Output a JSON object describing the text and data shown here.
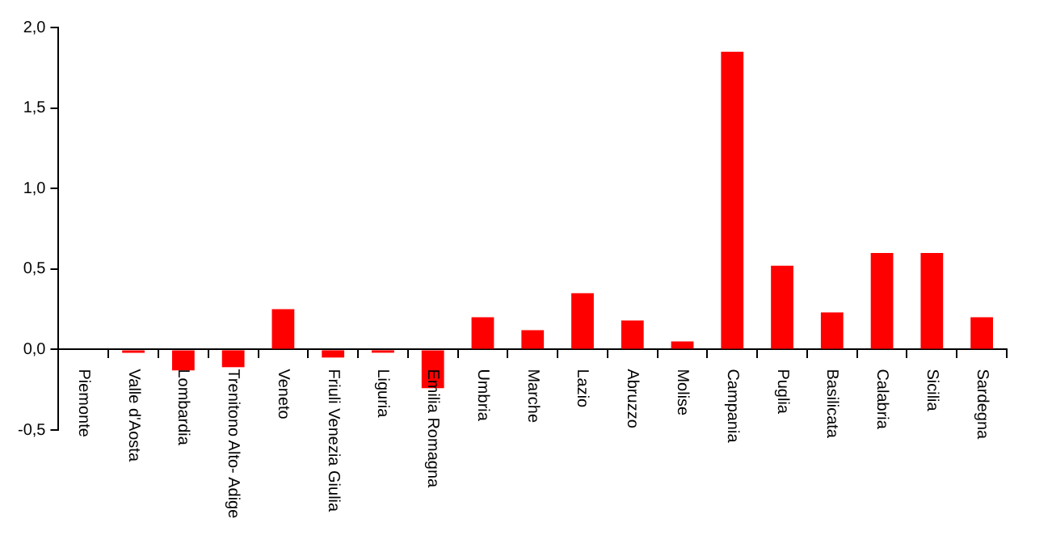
{
  "chart_data": {
    "type": "bar",
    "categories": [
      "Piemonte",
      "Valle d'Aosta",
      "Lombardia",
      "Trenitono Alto- Adige",
      "Veneto",
      "Friuli Venezia Giulia",
      "Liguria",
      "Emilia Romagna",
      "Umbria",
      "Marche",
      "Lazio",
      "Abruzzo",
      "Molise",
      "Campania",
      "Puglia",
      "Basilicata",
      "Calabria",
      "Sicilia",
      "Sardegna"
    ],
    "values": [
      0,
      -0.02,
      -0.13,
      -0.11,
      0.25,
      -0.05,
      -0.02,
      -0.24,
      0.2,
      0.12,
      0.35,
      0.18,
      0.05,
      1.85,
      0.52,
      0.23,
      0.6,
      0.6,
      0.2
    ],
    "color": "#ff0000",
    "ylim": [
      -0.5,
      2
    ],
    "yticks": [
      {
        "value": -0.5,
        "label": "-0,5"
      },
      {
        "value": 0,
        "label": "0,0"
      },
      {
        "value": 0.5,
        "label": "0,5"
      },
      {
        "value": 1,
        "label": "1,0"
      },
      {
        "value": 1.5,
        "label": "1,5"
      },
      {
        "value": 2,
        "label": "2,0"
      }
    ],
    "grid": false,
    "legend": false
  }
}
